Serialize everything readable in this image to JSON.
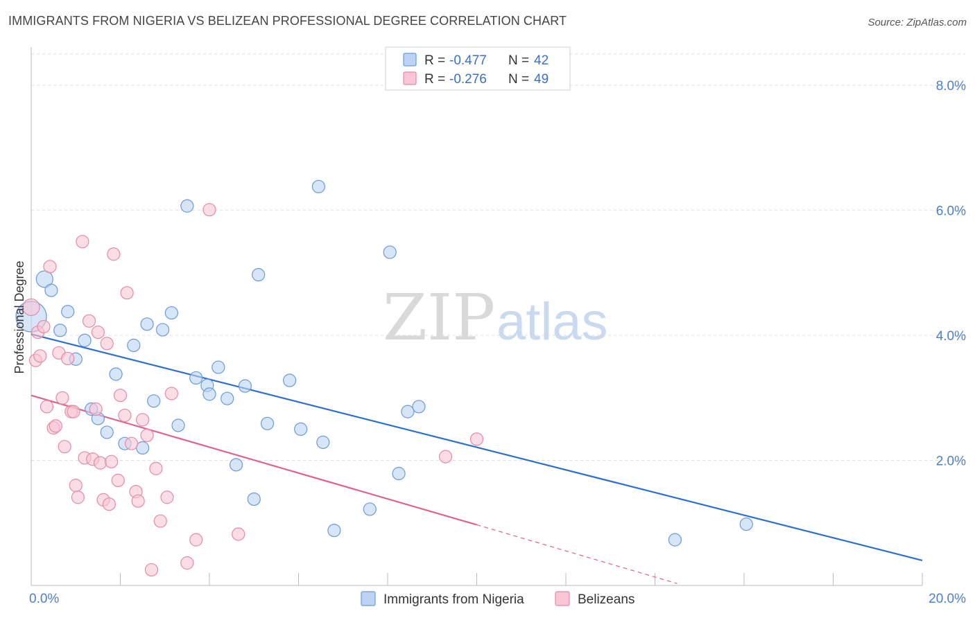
{
  "title": "IMMIGRANTS FROM NIGERIA VS BELIZEAN PROFESSIONAL DEGREE CORRELATION CHART",
  "source": "Source: ZipAtlas.com",
  "watermark": {
    "zip": "ZIP",
    "atlas": "atlas"
  },
  "colors": {
    "blue_fill": "#bcd3f5",
    "blue_stroke": "#6a9ad8",
    "blue_line": "#2a6fcf",
    "pink_fill": "#f8c6d4",
    "pink_stroke": "#e48aa6",
    "pink_line": "#e0628c"
  },
  "legend": {
    "rows": [
      {
        "r_label": "R = ",
        "r_value": "-0.477",
        "n_label": "N = ",
        "n_value": "42"
      },
      {
        "r_label": "R = ",
        "r_value": "-0.276",
        "n_label": "N = ",
        "n_value": "49"
      }
    ]
  },
  "chart_data": {
    "type": "scatter",
    "ylabel": "Professional Degree",
    "xlim": [
      0,
      20
    ],
    "ylim": [
      0,
      8.5
    ],
    "y_ticks": [
      {
        "value": 2,
        "label": "2.0%"
      },
      {
        "value": 4,
        "label": "4.0%"
      },
      {
        "value": 6,
        "label": "6.0%"
      },
      {
        "value": 8,
        "label": "8.0%"
      }
    ],
    "x_tick_labels": [
      {
        "value": 0,
        "label": "0.0%"
      },
      {
        "value": 20,
        "label": "20.0%"
      }
    ],
    "x_minor_ticks": [
      2,
      4,
      6,
      8,
      10,
      12,
      14,
      16,
      18,
      20
    ],
    "grid": true,
    "legend_position": "top-center",
    "series": [
      {
        "name": "Immigrants from Nigeria",
        "color": "blue",
        "trend": {
          "x": [
            0,
            20
          ],
          "y": [
            4.02,
            0.4
          ]
        },
        "points": [
          [
            0.0,
            4.3,
            22
          ],
          [
            0.3,
            4.9,
            12
          ],
          [
            0.45,
            4.72,
            9
          ],
          [
            0.65,
            4.08,
            9
          ],
          [
            0.82,
            4.38,
            9
          ],
          [
            1.0,
            3.62,
            9
          ],
          [
            1.2,
            3.92,
            9
          ],
          [
            1.35,
            2.82,
            9
          ],
          [
            1.5,
            2.67,
            9
          ],
          [
            1.7,
            2.45,
            9
          ],
          [
            1.9,
            3.38,
            9
          ],
          [
            2.1,
            2.27,
            9
          ],
          [
            2.3,
            3.84,
            9
          ],
          [
            2.5,
            2.2,
            9
          ],
          [
            2.6,
            4.18,
            9
          ],
          [
            2.75,
            2.95,
            9
          ],
          [
            2.95,
            4.09,
            9
          ],
          [
            3.15,
            4.36,
            9
          ],
          [
            3.3,
            2.56,
            9
          ],
          [
            3.5,
            6.07,
            9
          ],
          [
            3.7,
            3.32,
            9
          ],
          [
            3.95,
            3.2,
            9
          ],
          [
            4.0,
            3.06,
            9
          ],
          [
            4.2,
            3.49,
            9
          ],
          [
            4.4,
            2.99,
            9
          ],
          [
            4.6,
            1.93,
            9
          ],
          [
            4.8,
            3.19,
            9
          ],
          [
            5.0,
            1.38,
            9
          ],
          [
            5.1,
            4.97,
            9
          ],
          [
            5.3,
            2.59,
            9
          ],
          [
            5.8,
            3.28,
            9
          ],
          [
            6.05,
            2.5,
            9
          ],
          [
            6.45,
            6.38,
            9
          ],
          [
            6.55,
            2.29,
            9
          ],
          [
            6.8,
            0.88,
            9
          ],
          [
            7.6,
            1.22,
            9
          ],
          [
            8.05,
            5.33,
            9
          ],
          [
            8.25,
            1.79,
            9
          ],
          [
            8.45,
            2.78,
            9
          ],
          [
            8.7,
            2.86,
            9
          ],
          [
            14.45,
            0.73,
            9
          ],
          [
            16.05,
            0.98,
            9
          ]
        ]
      },
      {
        "name": "Belizeans",
        "color": "pink",
        "trend": {
          "x": [
            0,
            10
          ],
          "y": [
            3.04,
            0.97
          ]
        },
        "trend_ext": {
          "x": [
            10,
            14.5
          ],
          "y": [
            0.97,
            0.03
          ]
        },
        "points": [
          [
            0.0,
            4.45,
            12
          ],
          [
            0.1,
            3.6,
            9
          ],
          [
            0.15,
            4.05,
            9
          ],
          [
            0.2,
            3.67,
            9
          ],
          [
            0.28,
            4.14,
            9
          ],
          [
            0.35,
            2.86,
            9
          ],
          [
            0.42,
            5.1,
            9
          ],
          [
            0.5,
            2.52,
            9
          ],
          [
            0.55,
            2.55,
            9
          ],
          [
            0.62,
            3.72,
            9
          ],
          [
            0.7,
            3.0,
            9
          ],
          [
            0.75,
            2.22,
            9
          ],
          [
            0.82,
            3.63,
            9
          ],
          [
            0.9,
            2.78,
            9
          ],
          [
            0.95,
            2.78,
            9
          ],
          [
            1.0,
            1.6,
            9
          ],
          [
            1.05,
            1.41,
            9
          ],
          [
            1.15,
            5.5,
            9
          ],
          [
            1.2,
            2.04,
            9
          ],
          [
            1.3,
            4.23,
            9
          ],
          [
            1.38,
            2.02,
            9
          ],
          [
            1.45,
            2.82,
            9
          ],
          [
            1.5,
            4.05,
            9
          ],
          [
            1.55,
            1.96,
            9
          ],
          [
            1.62,
            1.37,
            9
          ],
          [
            1.7,
            3.87,
            9
          ],
          [
            1.75,
            1.3,
            9
          ],
          [
            1.8,
            1.98,
            9
          ],
          [
            1.85,
            5.3,
            9
          ],
          [
            1.95,
            1.68,
            9
          ],
          [
            2.0,
            3.04,
            9
          ],
          [
            2.1,
            2.72,
            9
          ],
          [
            2.15,
            4.68,
            9
          ],
          [
            2.25,
            2.27,
            9
          ],
          [
            2.35,
            1.5,
            9
          ],
          [
            2.4,
            1.35,
            9
          ],
          [
            2.5,
            2.65,
            9
          ],
          [
            2.6,
            2.4,
            9
          ],
          [
            2.7,
            0.25,
            9
          ],
          [
            2.8,
            1.87,
            9
          ],
          [
            2.9,
            1.03,
            9
          ],
          [
            3.05,
            1.41,
            9
          ],
          [
            3.15,
            3.07,
            9
          ],
          [
            3.5,
            0.36,
            9
          ],
          [
            3.7,
            0.73,
            9
          ],
          [
            4.0,
            6.01,
            9
          ],
          [
            4.65,
            0.82,
            9
          ],
          [
            9.3,
            2.06,
            9
          ],
          [
            10.0,
            2.34,
            9
          ]
        ]
      }
    ]
  }
}
